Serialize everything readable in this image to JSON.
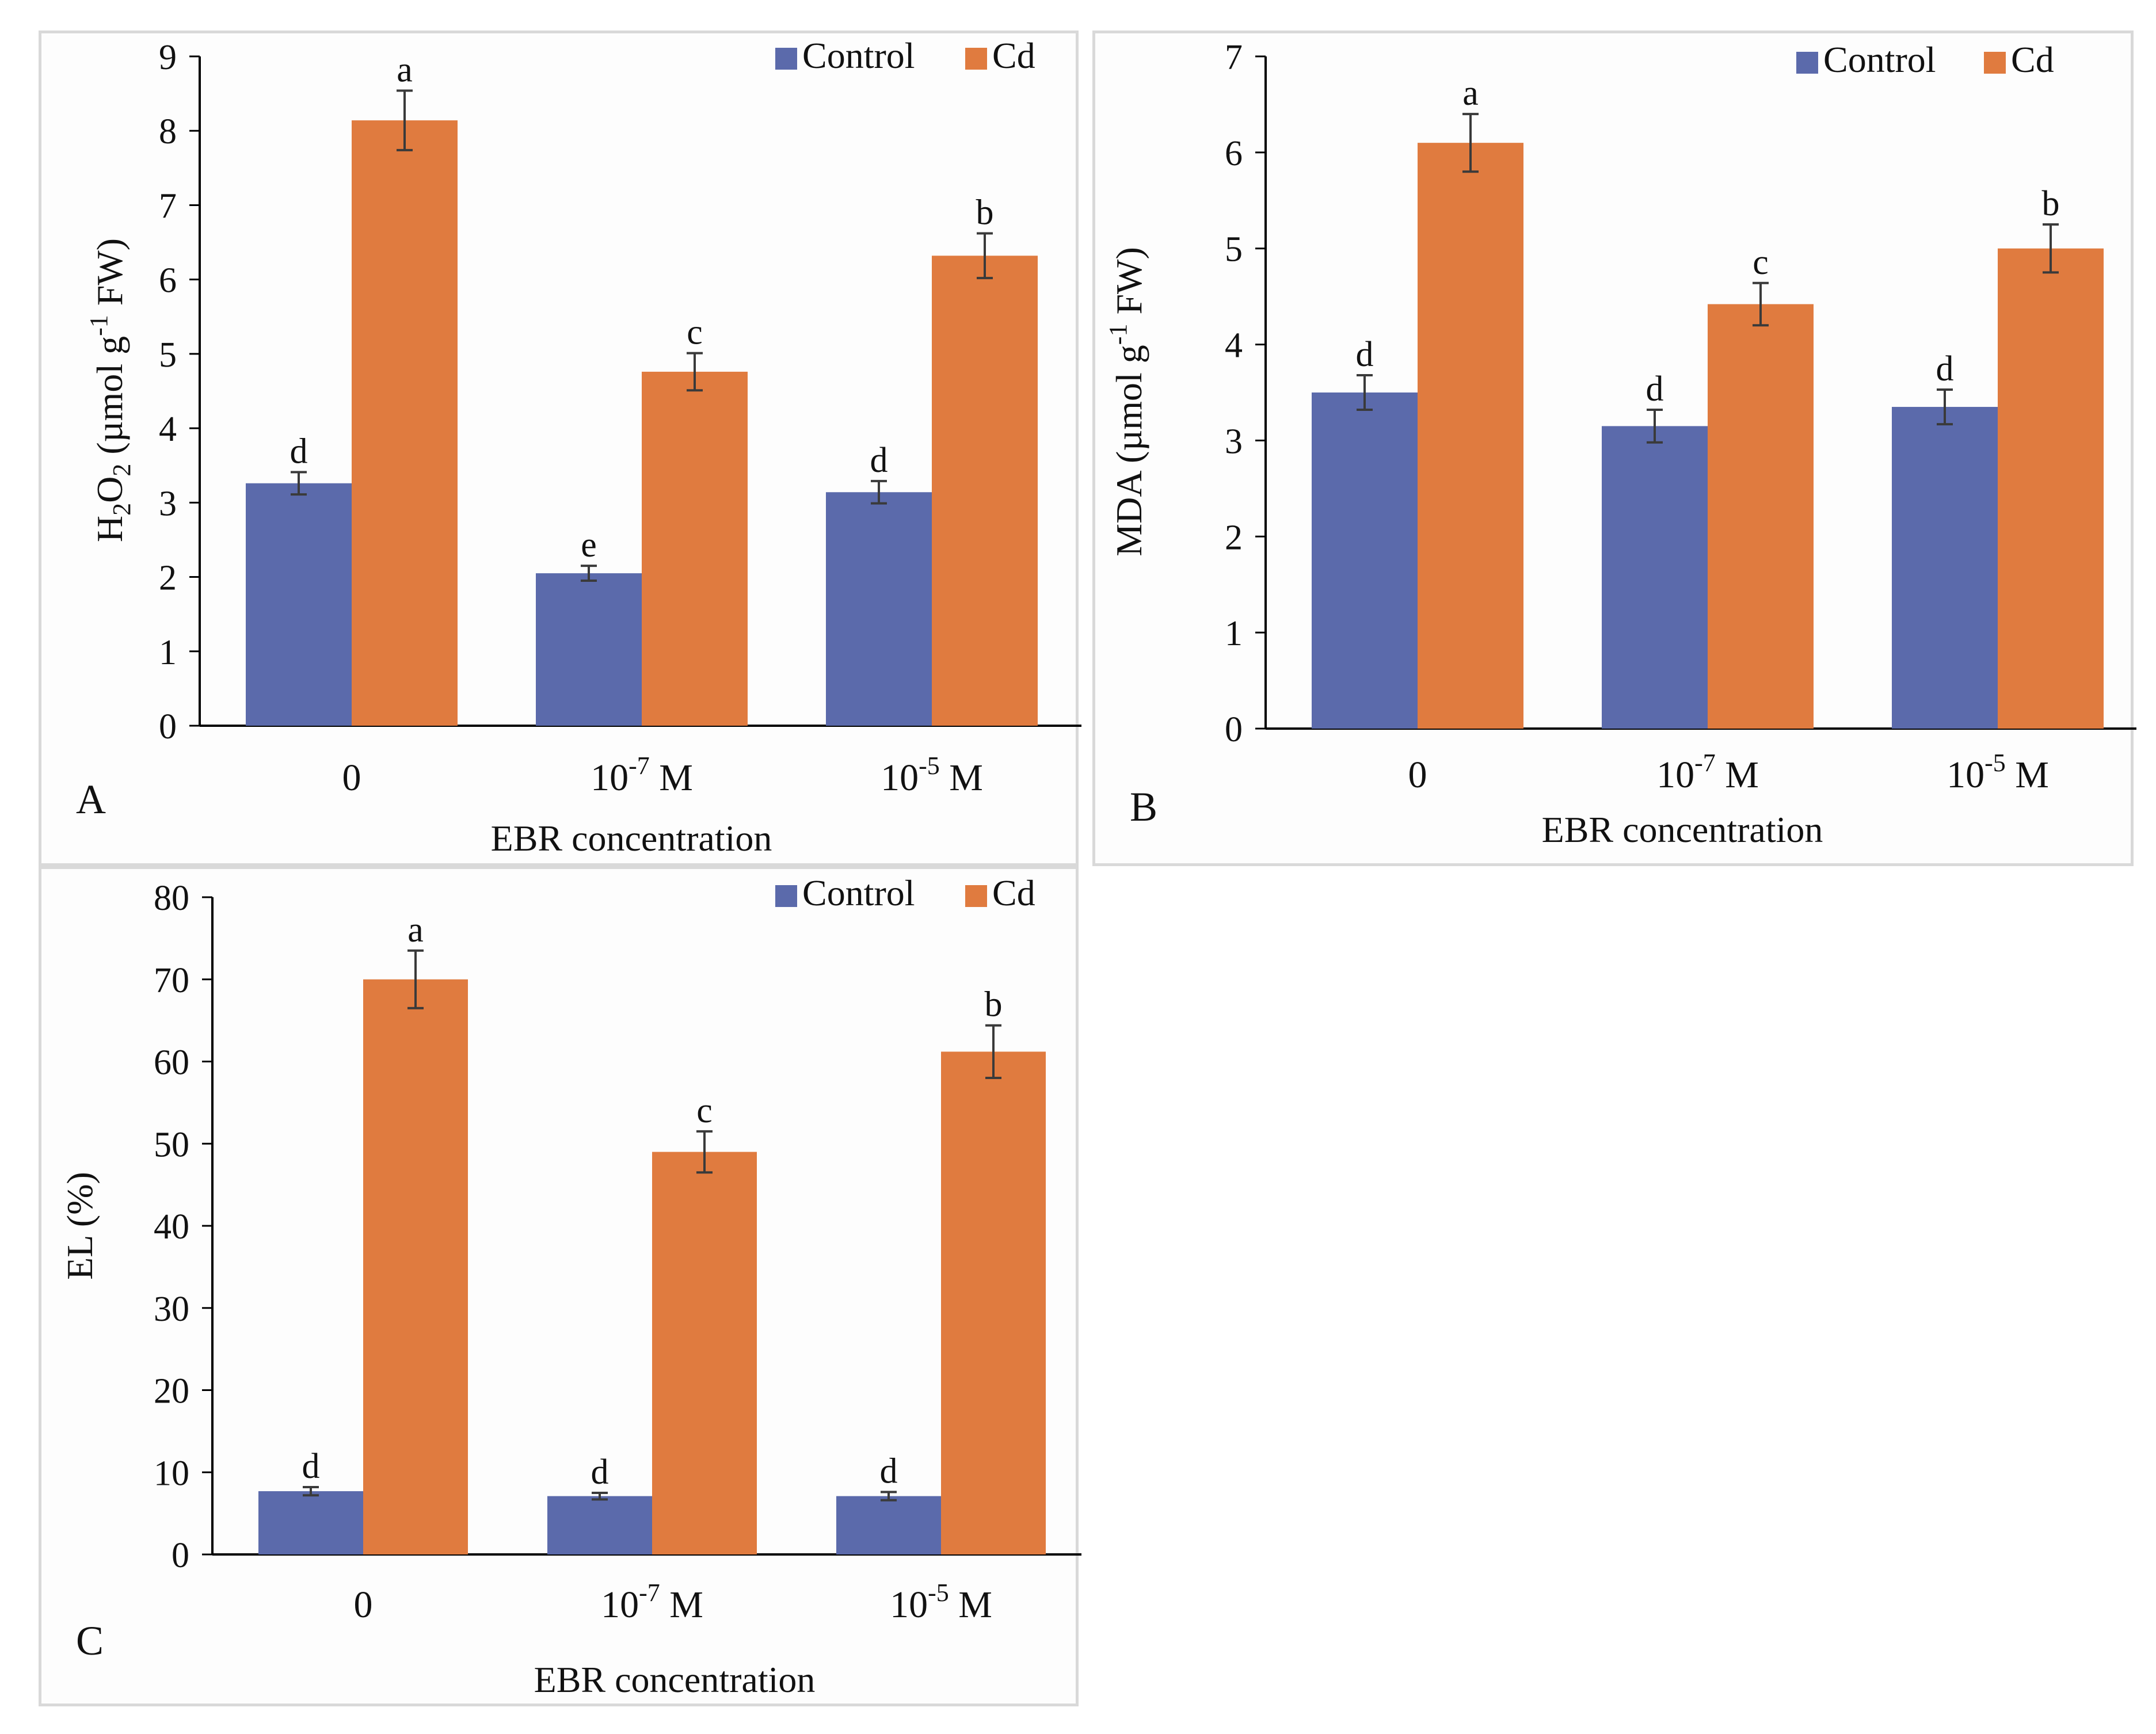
{
  "colors": {
    "control": "#5b6aab",
    "cd": "#e07b3f",
    "axis": "#000000",
    "error": "#3a3a3a"
  },
  "chart_data": [
    {
      "panel": "A",
      "type": "bar",
      "ylabel_main": "H",
      "ylabel_sub1": "2",
      "ylabel_mid": "O",
      "ylabel_sub2": "2",
      "ylabel_unit": " (µmol g",
      "ylabel_sup": "-1",
      "ylabel_end": " FW)",
      "xlabel": "EBR concentration",
      "ylim": [
        0,
        9
      ],
      "yticks": [
        0,
        1,
        2,
        3,
        4,
        5,
        6,
        7,
        8,
        9
      ],
      "categories": [
        {
          "base": "0",
          "sup": "",
          "suffix": ""
        },
        {
          "base": "10",
          "sup": "-7",
          "suffix": " M"
        },
        {
          "base": "10",
          "sup": "-5",
          "suffix": " M"
        }
      ],
      "series": [
        {
          "name": "Control",
          "values": [
            3.26,
            2.05,
            3.14
          ],
          "errors": [
            0.15,
            0.1,
            0.15
          ],
          "letters": [
            "d",
            "e",
            "d"
          ]
        },
        {
          "name": "Cd",
          "values": [
            8.14,
            4.76,
            6.32
          ],
          "errors": [
            0.4,
            0.25,
            0.3
          ],
          "letters": [
            "a",
            "c",
            "b"
          ]
        }
      ],
      "legend": [
        "Control",
        "Cd"
      ]
    },
    {
      "panel": "B",
      "type": "bar",
      "ylabel_main": "MDA (µmol g",
      "ylabel_sup": "-1",
      "ylabel_end": " FW)",
      "xlabel": "EBR concentration",
      "ylim": [
        0,
        7
      ],
      "yticks": [
        0,
        1,
        2,
        3,
        4,
        5,
        6,
        7
      ],
      "categories": [
        {
          "base": "0",
          "sup": "",
          "suffix": ""
        },
        {
          "base": "10",
          "sup": "-7",
          "suffix": " M"
        },
        {
          "base": "10",
          "sup": "-5",
          "suffix": " M"
        }
      ],
      "series": [
        {
          "name": "Control",
          "values": [
            3.5,
            3.15,
            3.35
          ],
          "errors": [
            0.18,
            0.17,
            0.18
          ],
          "letters": [
            "d",
            "d",
            "d"
          ]
        },
        {
          "name": "Cd",
          "values": [
            6.1,
            4.42,
            5.0
          ],
          "errors": [
            0.3,
            0.22,
            0.25
          ],
          "letters": [
            "a",
            "c",
            "b"
          ]
        }
      ],
      "legend": [
        "Control",
        "Cd"
      ]
    },
    {
      "panel": "C",
      "type": "bar",
      "ylabel_main": "EL (%)",
      "xlabel": "EBR concentration",
      "ylim": [
        0,
        80
      ],
      "yticks": [
        0,
        10,
        20,
        30,
        40,
        50,
        60,
        70,
        80
      ],
      "categories": [
        {
          "base": "0",
          "sup": "",
          "suffix": ""
        },
        {
          "base": "10",
          "sup": "-7",
          "suffix": " M"
        },
        {
          "base": "10",
          "sup": "-5",
          "suffix": " M"
        }
      ],
      "series": [
        {
          "name": "Control",
          "values": [
            7.7,
            7.1,
            7.1
          ],
          "errors": [
            0.5,
            0.4,
            0.5
          ],
          "letters": [
            "d",
            "d",
            "d"
          ]
        },
        {
          "name": "Cd",
          "values": [
            70,
            49,
            61.2
          ],
          "errors": [
            3.5,
            2.5,
            3.2
          ],
          "letters": [
            "a",
            "c",
            "b"
          ]
        }
      ],
      "legend": [
        "Control",
        "Cd"
      ]
    }
  ]
}
